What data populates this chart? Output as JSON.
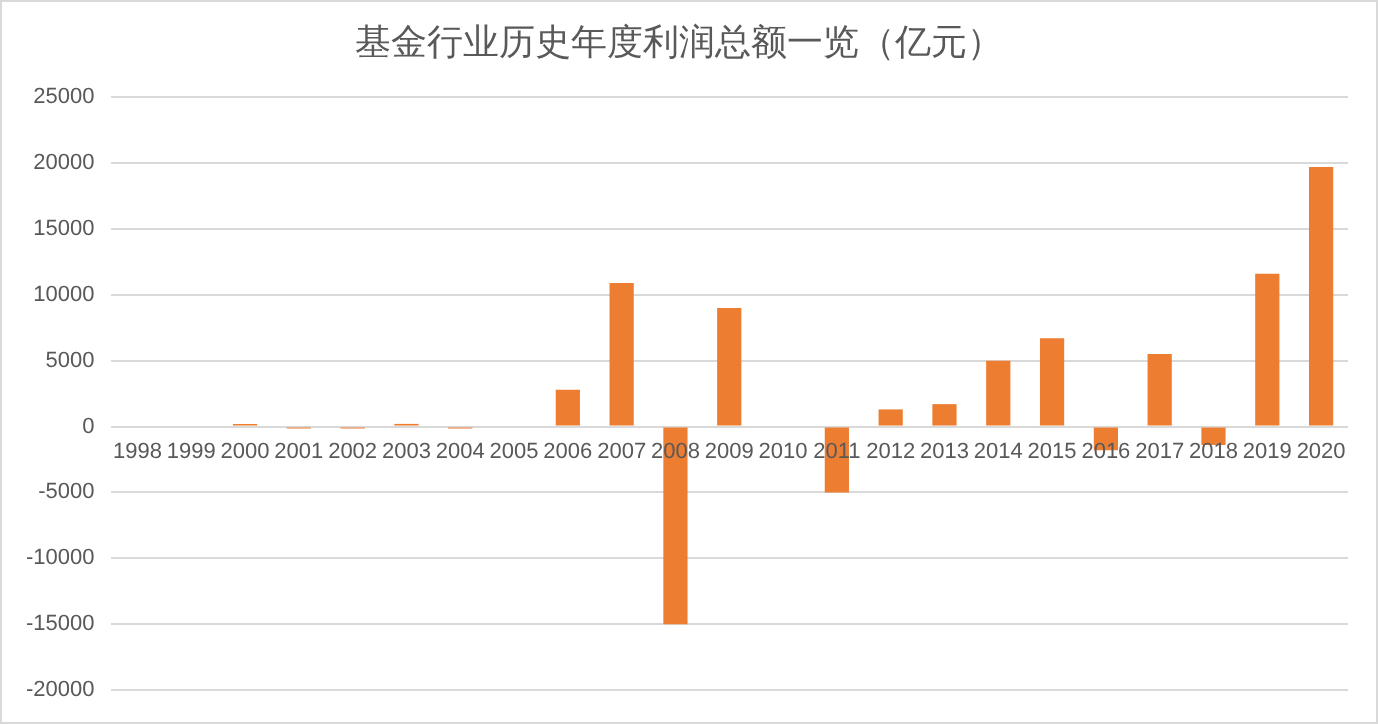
{
  "chart_data": {
    "type": "bar",
    "title": "基金行业历史年度利润总额一览（亿元）",
    "categories": [
      "1998",
      "1999",
      "2000",
      "2001",
      "2002",
      "2003",
      "2004",
      "2005",
      "2006",
      "2007",
      "2008",
      "2009",
      "2010",
      "2011",
      "2012",
      "2013",
      "2014",
      "2015",
      "2016",
      "2017",
      "2018",
      "2019",
      "2020"
    ],
    "series": [
      {
        "color": "#ed7d31",
        "values": [
          0,
          0,
          200,
          -150,
          -150,
          200,
          -150,
          0,
          2800,
          10900,
          -15000,
          9000,
          0,
          -5000,
          1300,
          1700,
          5000,
          6700,
          -1800,
          5500,
          -1400,
          11600,
          19700
        ]
      }
    ],
    "ylim": [
      -20000,
      25000
    ],
    "yticks": [
      -20000,
      -15000,
      -10000,
      -5000,
      0,
      5000,
      10000,
      15000,
      20000,
      25000
    ],
    "grid": "y",
    "legend": false
  }
}
